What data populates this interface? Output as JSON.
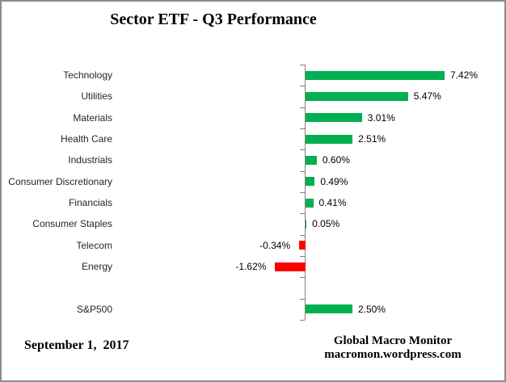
{
  "title": "Sector ETF - Q3 Performance",
  "footer": {
    "date": "September 1,  2017",
    "brand_line1": "Global Macro Monitor",
    "brand_line2": "macromon.wordpress.com"
  },
  "colors": {
    "positive_bar": "#00B050",
    "negative_bar": "#FF0000",
    "axis": "#808080",
    "text": "#262626",
    "border": "#8C8C8C"
  },
  "chart_data": {
    "type": "bar",
    "orientation": "horizontal",
    "title": "Sector ETF - Q3 Performance",
    "categories": [
      "Technology",
      "Utilities",
      "Materials",
      "Health Care",
      "Industrials",
      "Consumer Discretionary",
      "Financials",
      "Consumer Staples",
      "Telecom",
      "Energy",
      "",
      "S&P500"
    ],
    "values": [
      7.42,
      5.47,
      3.01,
      2.51,
      0.6,
      0.49,
      0.41,
      0.05,
      -0.34,
      -1.62,
      null,
      2.5
    ],
    "data_labels": [
      "7.42%",
      "5.47%",
      "3.01%",
      "2.51%",
      "0.60%",
      "0.49%",
      "0.41%",
      "0.05%",
      "-0.34%",
      "-1.62%",
      "",
      "2.50%"
    ],
    "unit": "%",
    "grid": false,
    "legend": false,
    "x_axis_labels_visible": false,
    "zero_line": true
  }
}
